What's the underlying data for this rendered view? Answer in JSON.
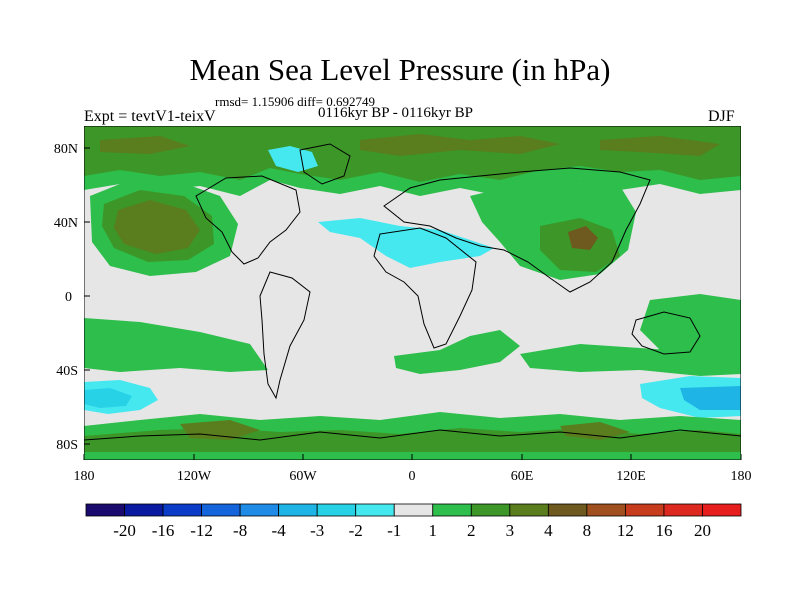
{
  "title": "Mean Sea Level Pressure (in hPa)",
  "stats": "rmsd= 1.15906 diff= 0.692749",
  "experiment": "Expt = tevtV1-teixV",
  "period": "0116kyr BP - 0116kyr BP",
  "season": "DJF",
  "lat_labels": [
    "80N",
    "40N",
    "0",
    "40S",
    "80S"
  ],
  "lon_labels": [
    "180",
    "120W",
    "60W",
    "0",
    "60E",
    "120E",
    "180"
  ],
  "colorbar": {
    "labels": [
      "-20",
      "-16",
      "-12",
      "-8",
      "-4",
      "-3",
      "-2",
      "-1",
      "1",
      "2",
      "3",
      "4",
      "8",
      "12",
      "16",
      "20"
    ],
    "colors": [
      "#1a0a6e",
      "#0a1aa0",
      "#0a3cc8",
      "#1464dc",
      "#1e8ce6",
      "#1eb4e6",
      "#28d2e6",
      "#46e8f0",
      "#e6e6e6",
      "#2dbe4b",
      "#3c9628",
      "#5a7d1e",
      "#6e5a1e",
      "#a0501e",
      "#c83c1e",
      "#dc281e",
      "#e61e1e"
    ]
  },
  "palette": {
    "ocean_neutral": "#e6e6e6",
    "green_light": "#2dbe4b",
    "green_dark": "#3c9628",
    "olive": "#5a7d1e",
    "brown": "#6e5a1e",
    "cyan": "#46e8f0",
    "cyan_mid": "#28d2e6",
    "blue_mid": "#1eb4e6"
  }
}
